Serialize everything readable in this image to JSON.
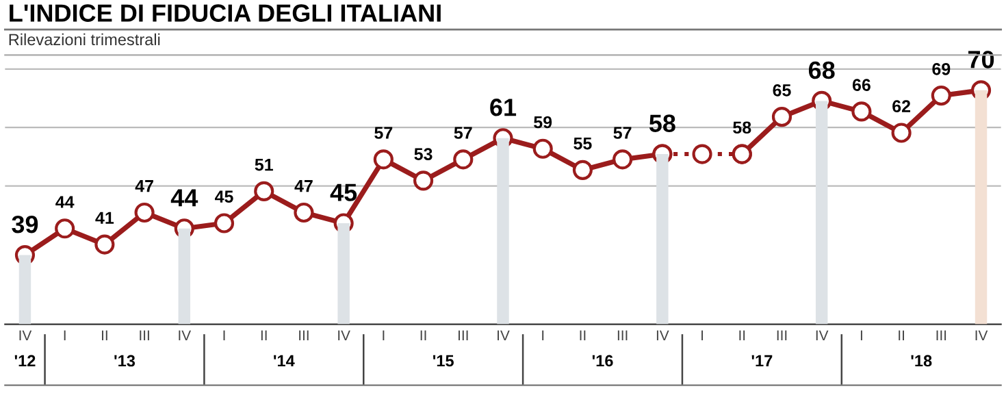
{
  "chart_data": {
    "type": "line",
    "title": "L'INDICE DI FIDUCIA DEGLI ITALIANI",
    "subtitle": "Rilevazioni trimestrali",
    "categories": [
      "IV",
      "I",
      "II",
      "III",
      "IV",
      "I",
      "II",
      "III",
      "IV",
      "I",
      "II",
      "III",
      "IV",
      "I",
      "II",
      "III",
      "IV",
      "I",
      "II",
      "III",
      "IV",
      "I",
      "II",
      "III",
      "IV"
    ],
    "annotations": [
      "'12",
      "'13",
      "'14",
      "'15",
      "'16",
      "'17",
      "'18"
    ],
    "series": [
      {
        "type": "bar",
        "colors": [
          "#dde2e6",
          null,
          null,
          null,
          "#dde2e6",
          null,
          null,
          null,
          "#dde2e6",
          null,
          null,
          null,
          "#dde2e6",
          null,
          null,
          null,
          "#dde2e6",
          null,
          null,
          null,
          "#dde2e6",
          null,
          null,
          null,
          "#f3e0d3"
        ],
        "values": [
          39,
          null,
          null,
          null,
          44,
          null,
          null,
          null,
          45,
          null,
          null,
          null,
          61,
          null,
          null,
          null,
          58,
          null,
          null,
          null,
          68,
          null,
          null,
          null,
          70
        ]
      },
      {
        "type": "line",
        "line_style": "dotted",
        "marker": "circle",
        "color": "#9b1c1c",
        "values": [
          null,
          null,
          null,
          null,
          null,
          null,
          null,
          null,
          null,
          null,
          null,
          null,
          null,
          null,
          null,
          null,
          58,
          58,
          58,
          null,
          null,
          null,
          null,
          null,
          null
        ]
      },
      {
        "line_style": "solid",
        "marker": "circle",
        "color": "#9b1c1c",
        "values": [
          39,
          44,
          41,
          47,
          44,
          45,
          51,
          47,
          45,
          57,
          53,
          57,
          61,
          59,
          55,
          57,
          58,
          null,
          58,
          65,
          68,
          66,
          62,
          69,
          70
        ],
        "value_labels": [
          "39",
          "44",
          "41",
          "47",
          "44",
          "45",
          "51",
          "47",
          "45",
          "57",
          "53",
          "57",
          "61",
          "59",
          "55",
          "57",
          "58",
          null,
          "58",
          "65",
          "68",
          "66",
          "62",
          "69",
          "70"
        ]
      }
    ],
    "ylim": [
      26,
      77
    ],
    "yticks": [
      {
        "value": 52,
        "label": null
      },
      {
        "value": 63,
        "label": null
      },
      {
        "value": 74,
        "label": null
      }
    ],
    "grid": "y",
    "tick_labels": "x",
    "legend": false
  }
}
